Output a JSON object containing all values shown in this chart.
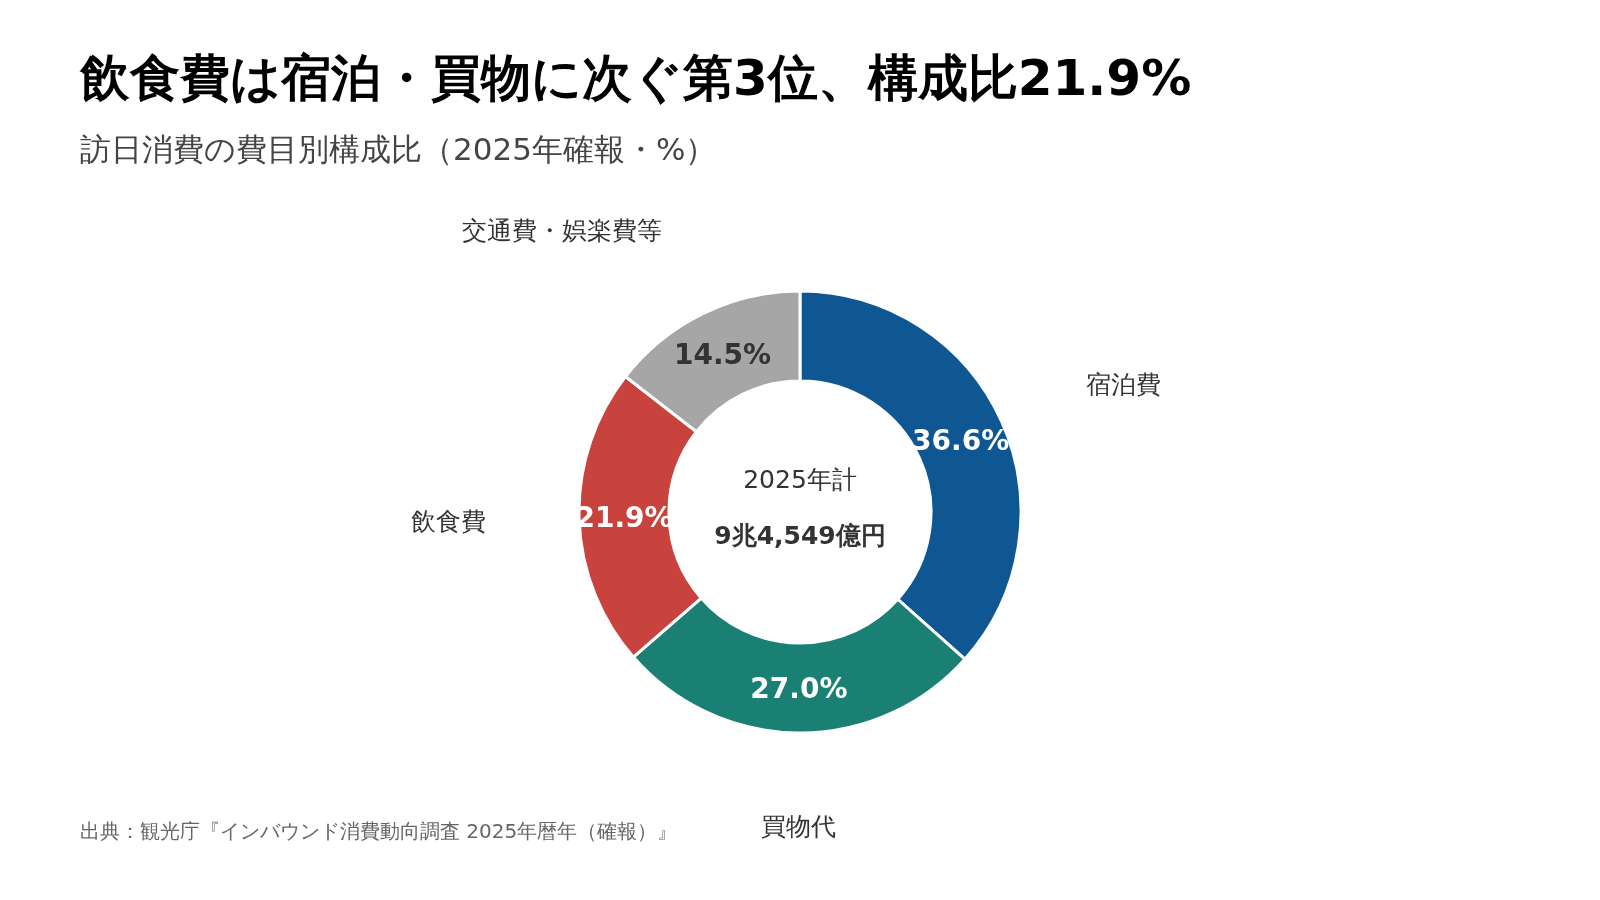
{
  "chart_data": {
    "type": "donut",
    "title": "飲食費は宿泊・買物に次ぐ第3位、構成比21.9%",
    "subtitle": "訪日消費の費目別構成比（2025年確報・%）",
    "categories": [
      "宿泊費",
      "買物代",
      "飲食費",
      "交通費・娯楽費等"
    ],
    "values": [
      36.6,
      27.0,
      21.9,
      14.5
    ],
    "colors": [
      "#0f5793",
      "#1a8073",
      "#c8433d",
      "#a6a6a6"
    ],
    "value_labels": [
      "36.6%",
      "27.0%",
      "21.9%",
      "14.5%"
    ],
    "annotations": [
      "2025年計",
      "**9兆4,549億円**",
      "出典：観光庁『インバウンド消費動向調査 2025年暦年（確報）』"
    ]
  }
}
